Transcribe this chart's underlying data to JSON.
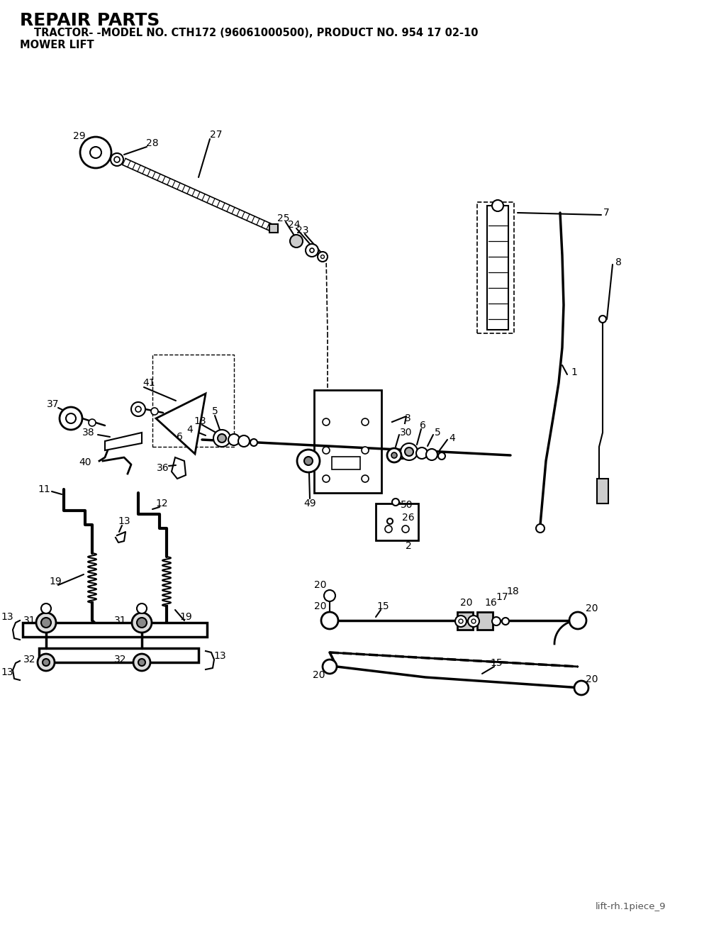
{
  "title": "REPAIR PARTS",
  "subtitle": "TRACTOR- -MODEL NO. CTH172 (96061000500), PRODUCT NO. 954 17 02-10",
  "subtitle2": "MOWER LIFT",
  "footer": "lift-rh.1piece_9",
  "bg_color": "#ffffff",
  "lc": "#000000"
}
